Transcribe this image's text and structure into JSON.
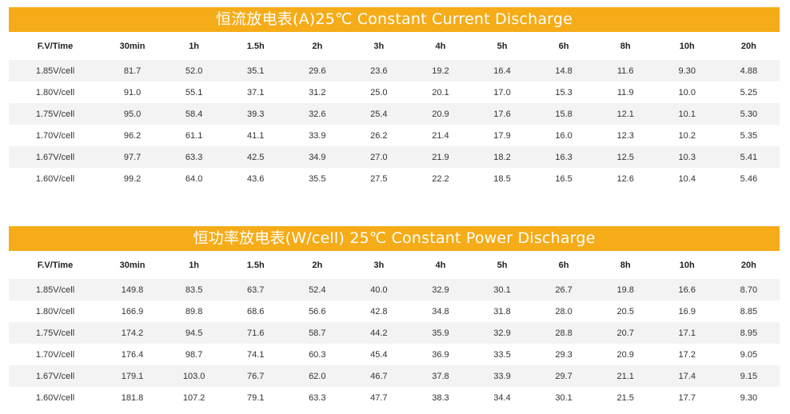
{
  "current_table": {
    "title": "恒流放电表(A)25℃ Constant Current Discharge",
    "headers": [
      "F.V/Time",
      "30min",
      "1h",
      "1.5h",
      "2h",
      "3h",
      "4h",
      "5h",
      "6h",
      "8h",
      "10h",
      "20h"
    ],
    "rows": [
      [
        "1.85V/cell",
        "81.7",
        "52.0",
        "35.1",
        "29.6",
        "23.6",
        "19.2",
        "16.4",
        "14.8",
        "11.6",
        "9.30",
        "4.88"
      ],
      [
        "1.80V/cell",
        "91.0",
        "55.1",
        "37.1",
        "31.2",
        "25.0",
        "20.1",
        "17.0",
        "15.3",
        "11.9",
        "10.0",
        "5.25"
      ],
      [
        "1.75V/cell",
        "95.0",
        "58.4",
        "39.3",
        "32.6",
        "25.4",
        "20.9",
        "17.6",
        "15.8",
        "12.1",
        "10.1",
        "5.30"
      ],
      [
        "1.70V/cell",
        "96.2",
        "61.1",
        "41.1",
        "33.9",
        "26.2",
        "21.4",
        "17.9",
        "16.0",
        "12.3",
        "10.2",
        "5.35"
      ],
      [
        "1.67V/cell",
        "97.7",
        "63.3",
        "42.5",
        "34.9",
        "27.0",
        "21.9",
        "18.2",
        "16.3",
        "12.5",
        "10.3",
        "5.41"
      ],
      [
        "1.60V/cell",
        "99.2",
        "64.0",
        "43.6",
        "35.5",
        "27.5",
        "22.2",
        "18.5",
        "16.5",
        "12.6",
        "10.4",
        "5.46"
      ]
    ]
  },
  "power_table": {
    "title": "恒功率放电表(W/cell) 25℃ Constant Power Discharge",
    "headers": [
      "F.V/Time",
      "30min",
      "1h",
      "1.5h",
      "2h",
      "3h",
      "4h",
      "5h",
      "6h",
      "8h",
      "10h",
      "20h"
    ],
    "rows": [
      [
        "1.85V/cell",
        "149.8",
        "83.5",
        "63.7",
        "52.4",
        "40.0",
        "32.9",
        "30.1",
        "26.7",
        "19.8",
        "16.6",
        "8.70"
      ],
      [
        "1.80V/cell",
        "166.9",
        "89.8",
        "68.6",
        "56.6",
        "42.8",
        "34.8",
        "31.8",
        "28.0",
        "20.5",
        "16.9",
        "8.85"
      ],
      [
        "1.75V/cell",
        "174.2",
        "94.5",
        "71.6",
        "58.7",
        "44.2",
        "35.9",
        "32.9",
        "28.8",
        "20.7",
        "17.1",
        "8.95"
      ],
      [
        "1.70V/cell",
        "176.4",
        "98.7",
        "74.1",
        "60.3",
        "45.4",
        "36.9",
        "33.5",
        "29.3",
        "20.9",
        "17.2",
        "9.05"
      ],
      [
        "1.67V/cell",
        "179.1",
        "103.0",
        "76.7",
        "62.0",
        "46.7",
        "37.8",
        "33.9",
        "29.7",
        "21.1",
        "17.4",
        "9.15"
      ],
      [
        "1.60V/cell",
        "181.8",
        "107.2",
        "79.1",
        "63.3",
        "47.7",
        "38.3",
        "34.4",
        "30.1",
        "21.5",
        "17.7",
        "9.30"
      ]
    ]
  },
  "colors": {
    "title_bar": "#f5ac18",
    "stripe": "#f3f3f3"
  }
}
